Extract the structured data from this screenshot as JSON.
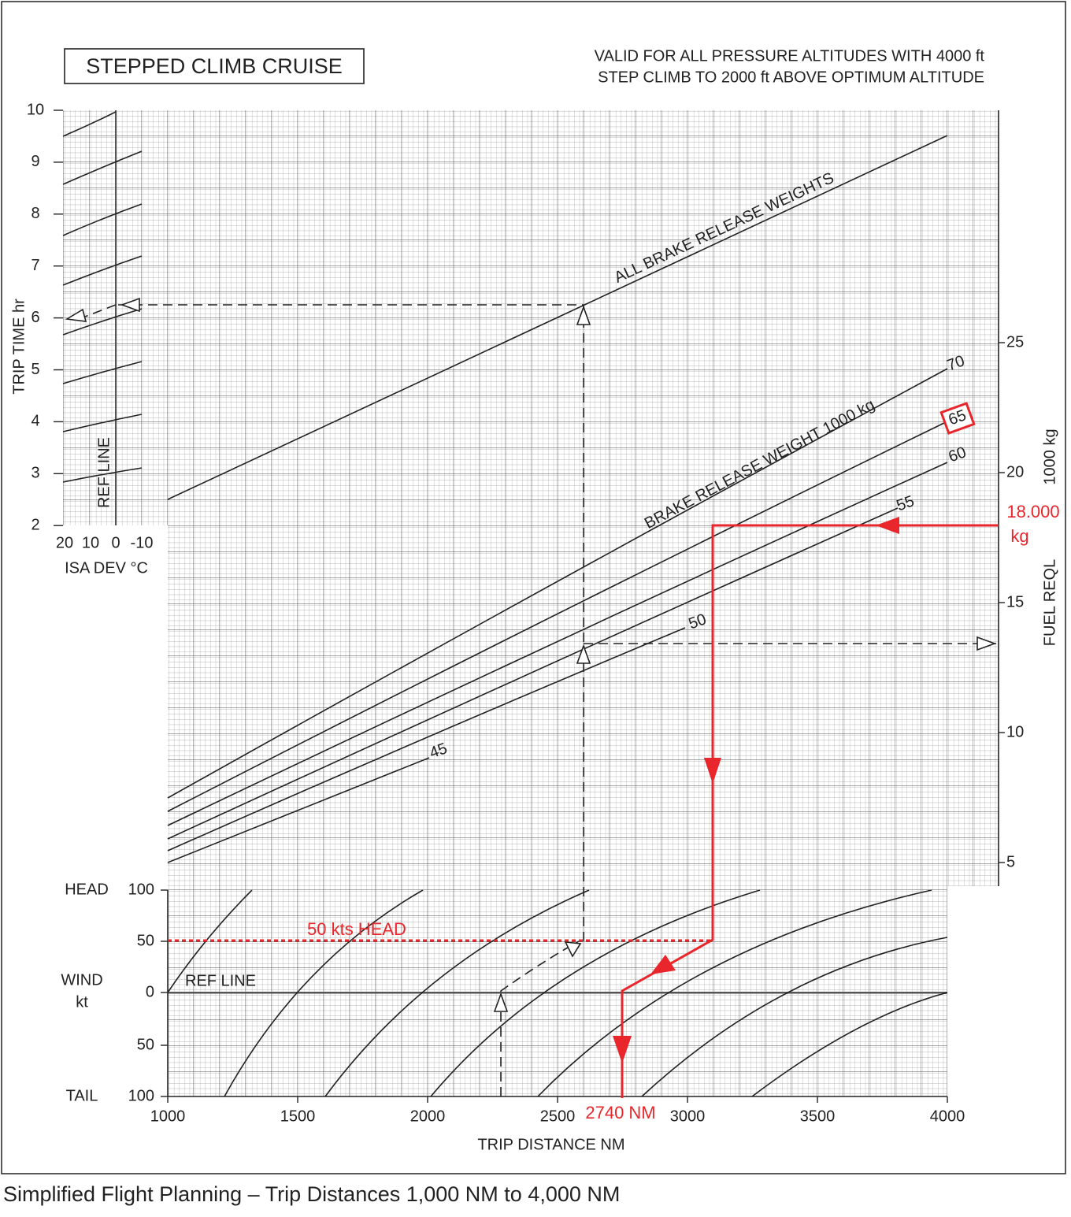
{
  "title": "STEPPED CLIMB CRUISE",
  "validity_note": [
    "VALID FOR ALL PRESSURE ALTITUDES WITH 4000 ft",
    "STEP CLIMB TO 2000 ft ABOVE OPTIMUM ALTITUDE"
  ],
  "trip_time_axis": {
    "label": "TRIP TIME  hr",
    "ticks": [
      "10",
      "9",
      "8",
      "7",
      "6",
      "5",
      "4",
      "3",
      "2"
    ]
  },
  "isa_axis": {
    "label": "ISA DEV °C",
    "ticks": [
      "20",
      "10",
      "0",
      "-10"
    ],
    "ref_line": "REF LINE"
  },
  "weight_lines": {
    "all_label": "ALL BRAKE RELEASE WEIGHTS",
    "label": "BRAKE RELEASE WEIGHT  1000 kg",
    "curve_labels": [
      "70",
      "65",
      "60",
      "55",
      "50",
      "45"
    ]
  },
  "fuel_axis": {
    "label": "FUEL REQL",
    "unit": "1000 kg",
    "ticks": [
      "25",
      "20",
      "15",
      "10",
      "5"
    ]
  },
  "wind_axis": {
    "labels": [
      "HEAD",
      "WIND",
      "kt",
      "TAIL"
    ],
    "ticks": [
      "100",
      "50",
      "0",
      "50",
      "100"
    ],
    "ref_line": "REF LINE"
  },
  "distance_axis": {
    "label": "TRIP DISTANCE  NM",
    "ticks": [
      "1000",
      "1500",
      "2000",
      "2500",
      "3000",
      "3500",
      "4000"
    ]
  },
  "annotations": {
    "fuel": [
      "18.000",
      "kg"
    ],
    "wind": "50 kts HEAD",
    "distance": "2740 NM"
  },
  "caption": "Simplified Flight Planning – Trip Distances 1,000 NM to 4,000 NM"
}
